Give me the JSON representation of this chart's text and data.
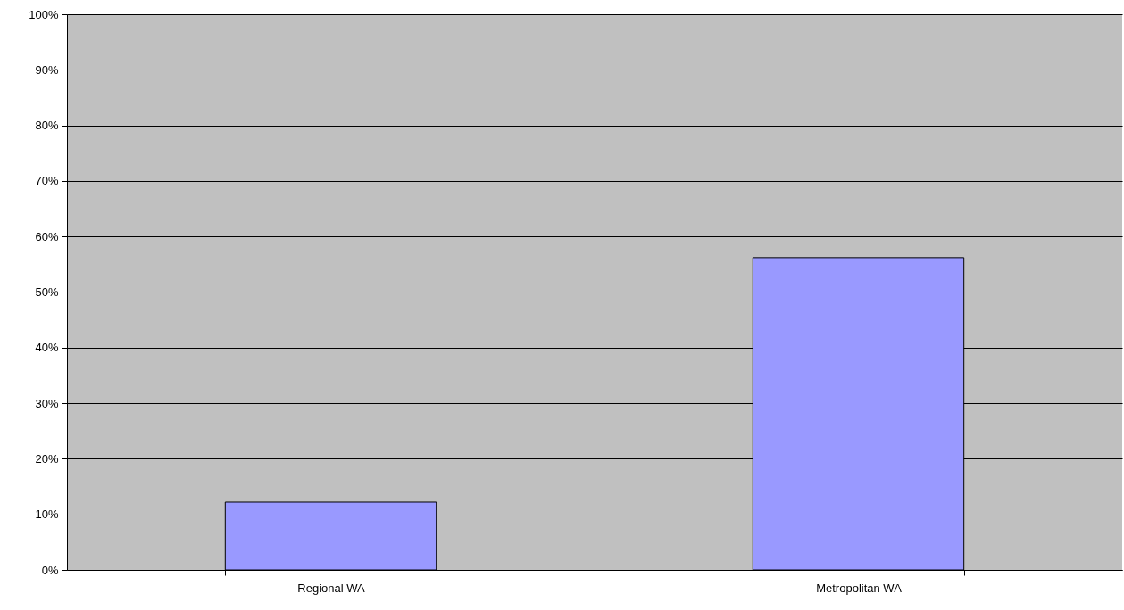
{
  "chart_data": {
    "type": "bar",
    "categories": [
      "Regional WA",
      "Metropolitan WA"
    ],
    "values": [
      12.2,
      56.2
    ],
    "color": "#9999ff",
    "ylim": [
      0,
      100
    ],
    "yticks": [
      {
        "value": 0,
        "label": "0%"
      },
      {
        "value": 10,
        "label": "10%"
      },
      {
        "value": 20,
        "label": "20%"
      },
      {
        "value": 30,
        "label": "30%"
      },
      {
        "value": 40,
        "label": "40%"
      },
      {
        "value": 50,
        "label": "50%"
      },
      {
        "value": 60,
        "label": "60%"
      },
      {
        "value": 70,
        "label": "70%"
      },
      {
        "value": 80,
        "label": "80%"
      },
      {
        "value": 90,
        "label": "90%"
      },
      {
        "value": 100,
        "label": "100%"
      }
    ],
    "grid": "y"
  }
}
